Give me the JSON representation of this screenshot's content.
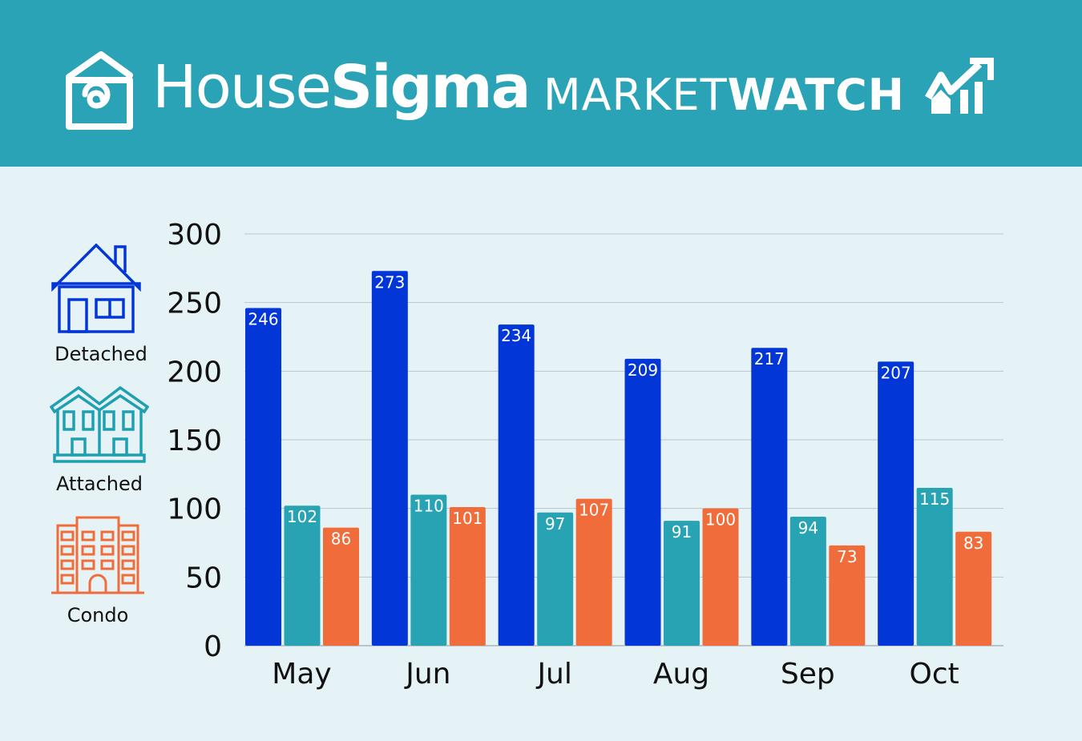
{
  "header": {
    "brand_light": "House",
    "brand_bold": "Sigma",
    "product_light": "MARKET",
    "product_bold": "WATCH"
  },
  "legend": [
    {
      "label": "Detached",
      "icon": "detached-house-icon",
      "color": "#0336d6"
    },
    {
      "label": "Attached",
      "icon": "townhouse-icon",
      "color": "#1f9fb0"
    },
    {
      "label": "Condo",
      "icon": "condo-building-icon",
      "color": "#f06c3a"
    }
  ],
  "chart_data": {
    "type": "bar",
    "categories": [
      "May",
      "Jun",
      "Jul",
      "Aug",
      "Sep",
      "Oct"
    ],
    "series": [
      {
        "name": "Detached",
        "color": "#0336d6",
        "values": [
          246,
          273,
          234,
          209,
          217,
          207
        ]
      },
      {
        "name": "Attached",
        "color": "#28a3b3",
        "values": [
          102,
          110,
          97,
          91,
          94,
          115
        ]
      },
      {
        "name": "Condo",
        "color": "#f06c3a",
        "values": [
          86,
          101,
          107,
          100,
          73,
          83
        ]
      }
    ],
    "yticks": [
      "0",
      "50",
      "100",
      "150",
      "200",
      "250",
      "300"
    ],
    "ylim": [
      0,
      300
    ],
    "grid": true,
    "legend_placement": "left",
    "data_labels": true
  }
}
